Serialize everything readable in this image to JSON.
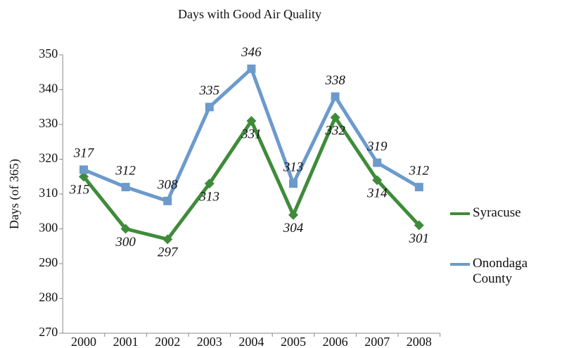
{
  "chart_data": {
    "type": "line",
    "title": "Days with Good Air Quality",
    "y_label": "Days (of 365)",
    "categories": [
      "2000",
      "2001",
      "2002",
      "2003",
      "2004",
      "2005",
      "2006",
      "2007",
      "2008"
    ],
    "series": [
      {
        "name": "Syracuse",
        "color": "#3f8b3a",
        "marker": "diamond",
        "values": [
          315,
          300,
          297,
          313,
          331,
          304,
          332,
          314,
          301
        ]
      },
      {
        "name": "Onondaga County",
        "color": "#6c9acb",
        "marker": "square",
        "values": [
          317,
          312,
          308,
          335,
          346,
          313,
          338,
          319,
          312
        ]
      }
    ],
    "ylim": [
      270,
      350
    ],
    "yticks": [
      270,
      280,
      290,
      300,
      310,
      320,
      330,
      340,
      350
    ],
    "legend": "right"
  }
}
